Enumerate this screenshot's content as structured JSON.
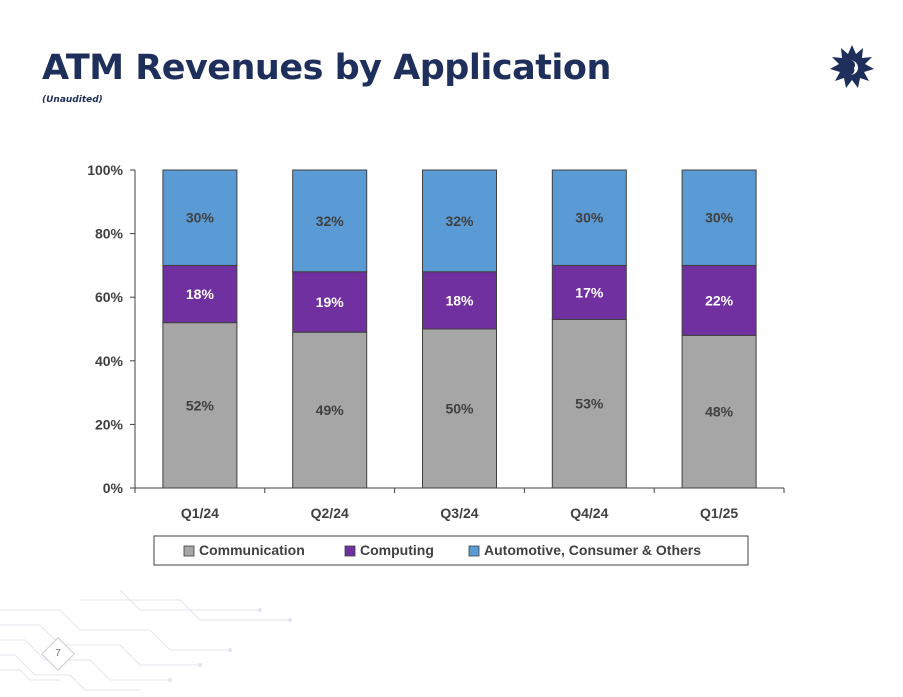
{
  "slide": {
    "title": "ATM Revenues by Application",
    "subtitle": "(Unaudited)",
    "page_number": "7",
    "logo": "sun-face-logo-icon"
  },
  "colors": {
    "title": "#1f2f5b",
    "communication": "#a6a6a6",
    "computing": "#7030a0",
    "automotive": "#5b9bd5"
  },
  "chart_data": {
    "type": "bar",
    "stacked": true,
    "title": "",
    "xlabel": "",
    "ylabel": "",
    "ylim": [
      0,
      100
    ],
    "y_ticks": [
      "0%",
      "20%",
      "40%",
      "60%",
      "80%",
      "100%"
    ],
    "categories": [
      "Q1/24",
      "Q2/24",
      "Q3/24",
      "Q4/24",
      "Q1/25"
    ],
    "series": [
      {
        "name": "Communication",
        "values": [
          52,
          49,
          50,
          53,
          48
        ],
        "labels": [
          "52%",
          "49%",
          "50%",
          "53%",
          "48%"
        ],
        "color": "#a6a6a6",
        "label_color": "#404040"
      },
      {
        "name": "Computing",
        "values": [
          18,
          19,
          18,
          17,
          22
        ],
        "labels": [
          "18%",
          "19%",
          "18%",
          "17%",
          "22%"
        ],
        "color": "#7030a0",
        "label_color": "#ffffff"
      },
      {
        "name": "Automotive, Consumer & Others",
        "values": [
          30,
          32,
          32,
          30,
          30
        ],
        "labels": [
          "30%",
          "32%",
          "32%",
          "30%",
          "30%"
        ],
        "color": "#5b9bd5",
        "label_color": "#404040"
      }
    ],
    "legend_position": "bottom"
  }
}
